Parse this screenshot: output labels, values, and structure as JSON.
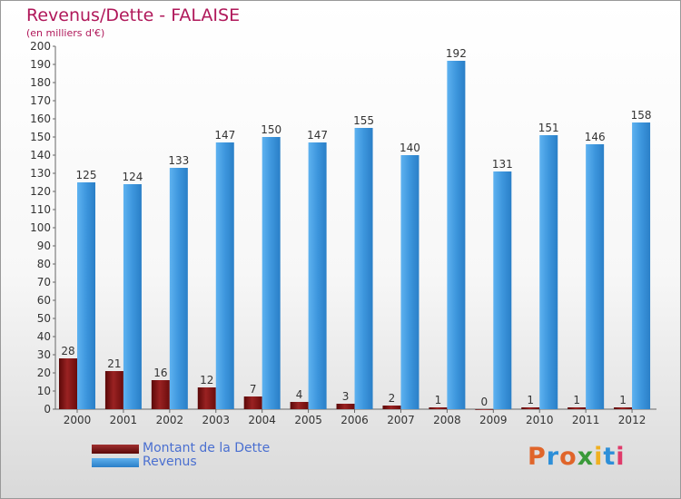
{
  "title": "Revenus/Dette - FALAISE",
  "subtitle": "(en milliers d'€)",
  "brand": "Proxiti",
  "colors": {
    "title": "#b0185a",
    "debt": "#7a1010",
    "revenue": "#3d96dd",
    "legend_text": "#4a6fd0",
    "axis_text": "#333333"
  },
  "chart_data": {
    "type": "bar",
    "categories": [
      "2000",
      "2001",
      "2002",
      "2003",
      "2004",
      "2005",
      "2006",
      "2007",
      "2008",
      "2009",
      "2010",
      "2011",
      "2012"
    ],
    "series": [
      {
        "name": "Montant de la Dette",
        "values": [
          28,
          21,
          16,
          12,
          7,
          4,
          3,
          2,
          1,
          0,
          1,
          1,
          1
        ]
      },
      {
        "name": "Revenus",
        "values": [
          125,
          124,
          133,
          147,
          150,
          147,
          155,
          140,
          192,
          131,
          151,
          146,
          158
        ]
      }
    ],
    "yticks": [
      0,
      10,
      20,
      30,
      40,
      50,
      60,
      70,
      80,
      90,
      100,
      110,
      120,
      130,
      140,
      150,
      160,
      170,
      180,
      190,
      200
    ],
    "ylim": [
      0,
      200
    ],
    "grid": false,
    "legend": "bottom-left"
  }
}
